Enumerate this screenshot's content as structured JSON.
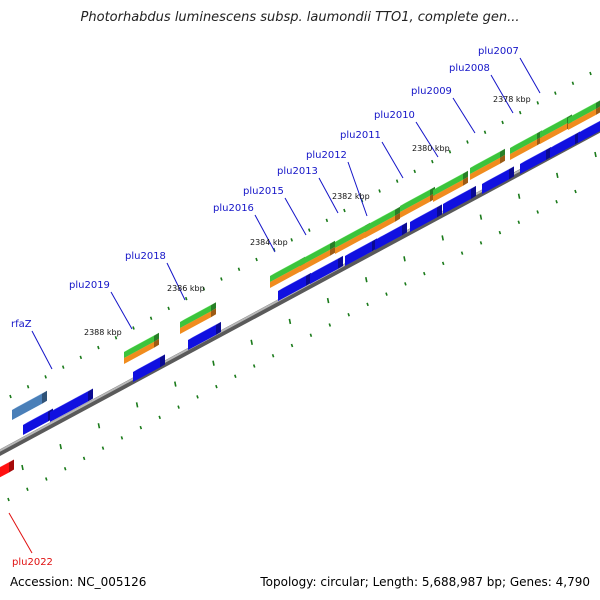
{
  "title": "Photorhabdus luminescens subsp. laumondii TTO1, complete gen...",
  "footer": {
    "accession": "Accession: NC_005126",
    "summary": "Topology: circular; Length: 5,688,987 bp; Genes: 4,790"
  },
  "gene_labels": [
    {
      "name": "plu2007",
      "color": "blue"
    },
    {
      "name": "plu2008",
      "color": "blue"
    },
    {
      "name": "plu2009",
      "color": "blue"
    },
    {
      "name": "plu2010",
      "color": "blue"
    },
    {
      "name": "plu2011",
      "color": "blue"
    },
    {
      "name": "plu2012",
      "color": "blue"
    },
    {
      "name": "plu2013",
      "color": "blue"
    },
    {
      "name": "plu2015",
      "color": "blue"
    },
    {
      "name": "plu2016",
      "color": "blue"
    },
    {
      "name": "plu2018",
      "color": "blue"
    },
    {
      "name": "plu2019",
      "color": "blue"
    },
    {
      "name": "rfaZ",
      "color": "blue"
    },
    {
      "name": "plu2022",
      "color": "red"
    }
  ],
  "kbp_labels": [
    "2378 kbp",
    "2380 kbp",
    "2382 kbp",
    "2384 kbp",
    "2386 kbp",
    "2388 kbp"
  ],
  "colors": {
    "backbone": "#8a8a8a",
    "forward_gene": "#1010e0",
    "cds_green": "#3cc43c",
    "cds_orange": "#f08c1e",
    "rfaZ": "#4a7fb8",
    "plu2022": "#ff1010",
    "label_blue": "#1515c8",
    "label_red": "#e01010",
    "tick_green": "#1a7a1a"
  }
}
